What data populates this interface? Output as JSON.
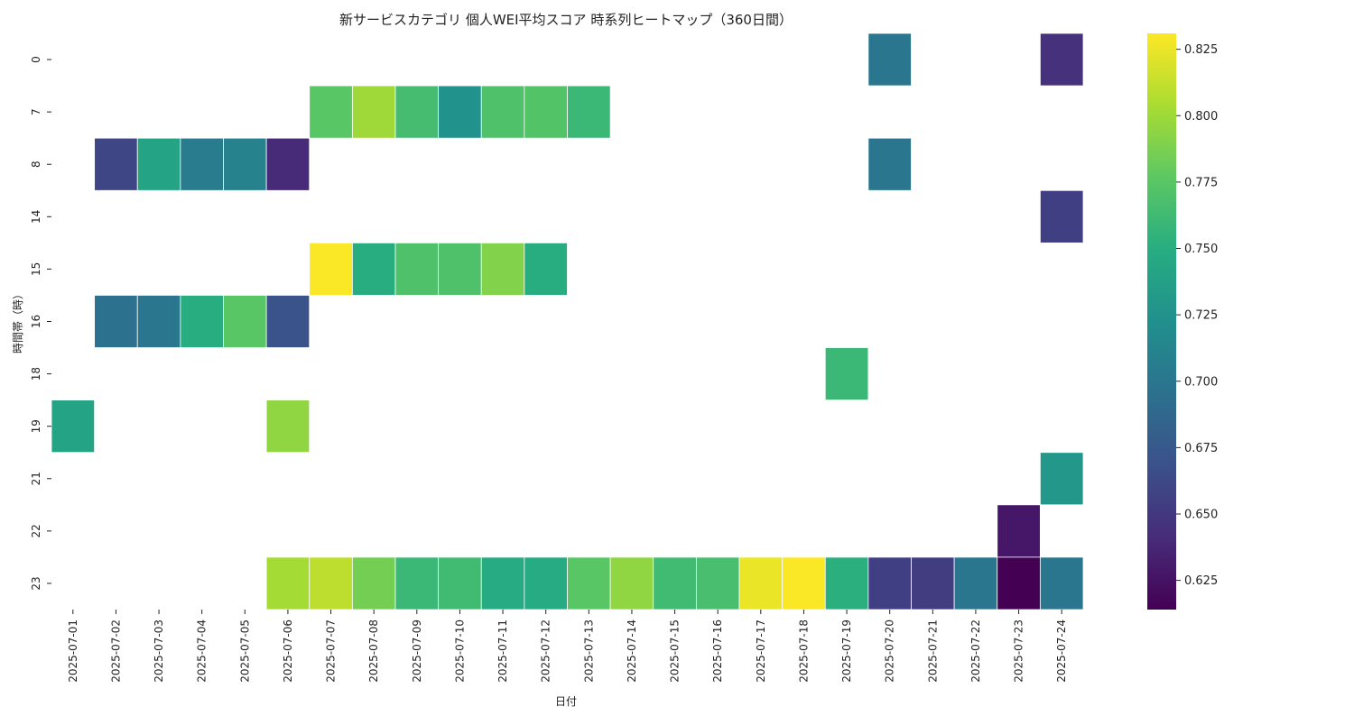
{
  "chart_data": {
    "type": "heatmap",
    "title": "新サービスカテゴリ 個人WEI平均スコア 時系列ヒートマップ（360日間）",
    "xlabel": "日付",
    "ylabel": "時間帯（時）",
    "x_categories": [
      "2025-07-01",
      "2025-07-02",
      "2025-07-03",
      "2025-07-04",
      "2025-07-05",
      "2025-07-06",
      "2025-07-07",
      "2025-07-08",
      "2025-07-09",
      "2025-07-10",
      "2025-07-11",
      "2025-07-12",
      "2025-07-13",
      "2025-07-14",
      "2025-07-15",
      "2025-07-16",
      "2025-07-17",
      "2025-07-18",
      "2025-07-19",
      "2025-07-20",
      "2025-07-21",
      "2025-07-22",
      "2025-07-23",
      "2025-07-24"
    ],
    "y_categories": [
      "0",
      "7",
      "8",
      "14",
      "15",
      "16",
      "18",
      "19",
      "21",
      "22",
      "23"
    ],
    "values": [
      [
        null,
        null,
        null,
        null,
        null,
        null,
        null,
        null,
        null,
        null,
        null,
        null,
        null,
        null,
        null,
        null,
        null,
        null,
        null,
        0.7,
        null,
        null,
        null,
        0.645
      ],
      [
        null,
        null,
        null,
        null,
        null,
        null,
        0.775,
        0.8,
        0.765,
        0.725,
        0.77,
        0.772,
        0.76,
        null,
        null,
        null,
        null,
        null,
        null,
        null,
        null,
        null,
        null,
        null
      ],
      [
        null,
        0.66,
        0.74,
        0.705,
        0.71,
        0.64,
        null,
        null,
        null,
        null,
        null,
        null,
        null,
        null,
        null,
        null,
        null,
        null,
        null,
        0.7,
        null,
        null,
        null,
        null
      ],
      [
        null,
        null,
        null,
        null,
        null,
        null,
        null,
        null,
        null,
        null,
        null,
        null,
        null,
        null,
        null,
        null,
        null,
        null,
        null,
        null,
        null,
        null,
        null,
        0.655
      ],
      [
        null,
        null,
        null,
        null,
        null,
        null,
        0.83,
        0.75,
        0.77,
        0.77,
        0.79,
        0.75,
        null,
        null,
        null,
        null,
        null,
        null,
        null,
        null,
        null,
        null,
        null,
        null
      ],
      [
        null,
        0.695,
        0.7,
        0.75,
        0.775,
        0.67,
        null,
        null,
        null,
        null,
        null,
        null,
        null,
        null,
        null,
        null,
        null,
        null,
        null,
        null,
        null,
        null,
        null,
        null
      ],
      [
        null,
        null,
        null,
        null,
        null,
        null,
        null,
        null,
        null,
        null,
        null,
        null,
        null,
        null,
        null,
        null,
        null,
        null,
        0.76,
        null,
        null,
        null,
        null,
        null
      ],
      [
        0.74,
        null,
        null,
        null,
        null,
        0.795,
        null,
        null,
        null,
        null,
        null,
        null,
        null,
        null,
        null,
        null,
        null,
        null,
        null,
        null,
        null,
        null,
        null,
        null
      ],
      [
        null,
        null,
        null,
        null,
        null,
        null,
        null,
        null,
        null,
        null,
        null,
        null,
        null,
        null,
        null,
        null,
        null,
        null,
        null,
        null,
        null,
        null,
        null,
        0.73
      ],
      [
        null,
        null,
        null,
        null,
        null,
        null,
        null,
        null,
        null,
        null,
        null,
        null,
        null,
        null,
        null,
        null,
        null,
        null,
        null,
        null,
        null,
        null,
        0.628,
        null
      ],
      [
        null,
        null,
        null,
        null,
        null,
        0.802,
        0.81,
        0.785,
        0.76,
        0.763,
        0.748,
        0.748,
        0.775,
        0.795,
        0.763,
        0.767,
        0.825,
        0.83,
        0.752,
        0.655,
        0.653,
        0.7,
        0.614,
        0.7
      ]
    ],
    "colorbar": {
      "colormap": "viridis",
      "range": [
        0.614,
        0.831
      ],
      "ticks": [
        "0.625",
        "0.650",
        "0.675",
        "0.700",
        "0.725",
        "0.750",
        "0.775",
        "0.800",
        "0.825"
      ]
    },
    "grid": false
  }
}
